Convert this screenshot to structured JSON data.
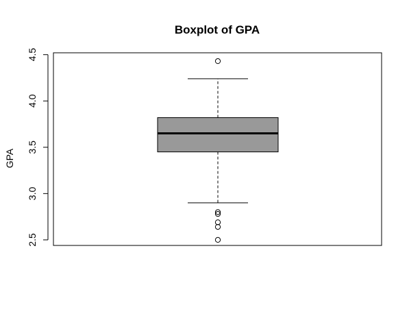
{
  "chart_data": {
    "type": "boxplot",
    "title": "Boxplot of GPA",
    "xlabel": "",
    "ylabel": "GPA",
    "ylim": [
      2.44,
      4.52
    ],
    "yticks": [
      2.5,
      3.0,
      3.5,
      4.0,
      4.5
    ],
    "ytick_labels": [
      "2.5",
      "3.0",
      "3.5",
      "4.0",
      "4.5"
    ],
    "grid": false,
    "box": {
      "whisker_low": 2.9,
      "q1": 3.45,
      "median": 3.65,
      "q3": 3.82,
      "whisker_high": 4.24
    },
    "outliers": [
      4.43,
      2.8,
      2.78,
      2.69,
      2.64,
      2.5
    ],
    "box_fill": "#999999",
    "line_color": "#000000"
  }
}
